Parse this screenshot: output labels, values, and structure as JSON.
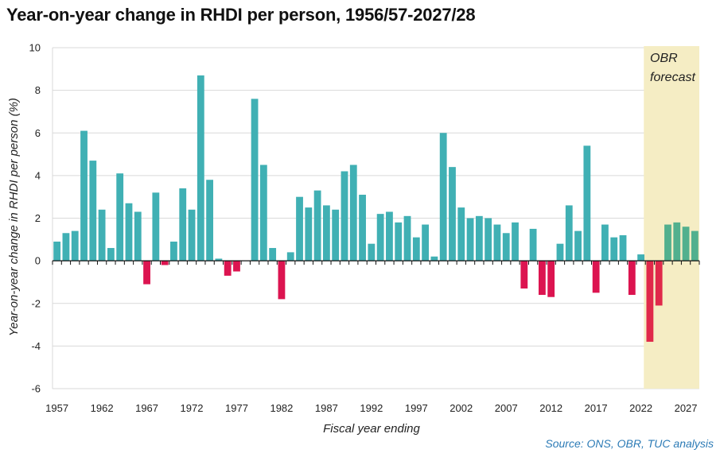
{
  "title": "Year-on-year change in RHDI per person, 1956/57-2027/28",
  "source": "Source: ONS, OBR, TUC analysis",
  "forecast_label": [
    "OBR",
    "forecast"
  ],
  "colors": {
    "positive": "#40b0b4",
    "negative": "#dc1450",
    "forecast_positive": "#52b08e",
    "forecast_negative": "#e0294a",
    "forecast_band": "#f5edc4",
    "grid": "#d9d9d9"
  },
  "chart_data": {
    "type": "bar",
    "xlabel": "Fiscal year ending",
    "ylabel": "Year-on-year change in RHDI per person (%)",
    "ylim": [
      -6,
      10
    ],
    "yticks": [
      -6,
      -4,
      -2,
      0,
      2,
      4,
      6,
      8,
      10
    ],
    "xtick_labels": [
      "1957",
      "1962",
      "1967",
      "1972",
      "1977",
      "1982",
      "1987",
      "1992",
      "1997",
      "2002",
      "2007",
      "2012",
      "2017",
      "2022",
      "2027"
    ],
    "forecast_range": [
      2023,
      2028
    ],
    "grid": true,
    "years": [
      1957,
      1958,
      1959,
      1960,
      1961,
      1962,
      1963,
      1964,
      1965,
      1966,
      1967,
      1968,
      1969,
      1970,
      1971,
      1972,
      1973,
      1974,
      1975,
      1976,
      1977,
      1978,
      1979,
      1980,
      1981,
      1982,
      1983,
      1984,
      1985,
      1986,
      1987,
      1988,
      1989,
      1990,
      1991,
      1992,
      1993,
      1994,
      1995,
      1996,
      1997,
      1998,
      1999,
      2000,
      2001,
      2002,
      2003,
      2004,
      2005,
      2006,
      2007,
      2008,
      2009,
      2010,
      2011,
      2012,
      2013,
      2014,
      2015,
      2016,
      2017,
      2018,
      2019,
      2020,
      2021,
      2022,
      2023,
      2024,
      2025,
      2026,
      2027,
      2028
    ],
    "values": [
      0.9,
      1.3,
      1.4,
      6.1,
      4.7,
      2.4,
      0.6,
      4.1,
      2.7,
      2.3,
      -1.1,
      3.2,
      -0.2,
      0.9,
      3.4,
      2.4,
      8.7,
      3.8,
      0.1,
      -0.7,
      -0.5,
      0.0,
      7.6,
      4.5,
      0.6,
      -1.8,
      0.4,
      3.0,
      2.5,
      3.3,
      2.6,
      2.4,
      4.2,
      4.5,
      3.1,
      0.8,
      2.2,
      2.3,
      1.8,
      2.1,
      1.1,
      1.7,
      0.2,
      6.0,
      4.4,
      2.5,
      2.0,
      2.1,
      2.0,
      1.7,
      1.3,
      1.8,
      -1.3,
      1.5,
      -1.6,
      -1.7,
      0.8,
      2.6,
      1.4,
      5.4,
      -1.5,
      1.7,
      1.1,
      1.2,
      -1.6,
      0.3,
      -3.8,
      -2.1,
      1.7,
      1.8,
      1.6,
      1.4
    ]
  }
}
